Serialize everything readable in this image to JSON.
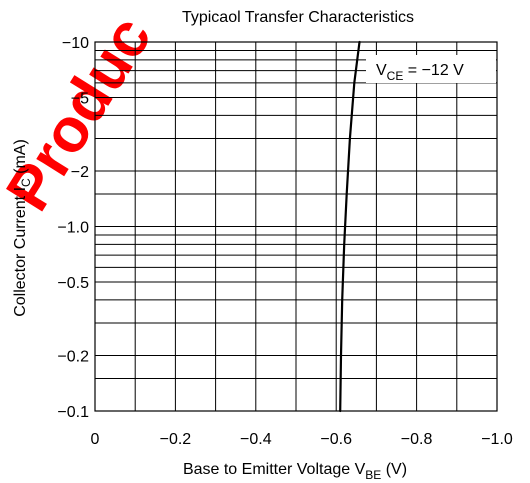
{
  "chart_data": {
    "type": "line",
    "title": "Typicaol Transfer Characteristics",
    "xlabel": {
      "main": "Base to Emitter Voltage  V",
      "sub": "BE",
      "unit": "  (V)"
    },
    "ylabel": {
      "main": "Collector Current  I",
      "sub": "C",
      "unit": "  (mA)"
    },
    "xlim": [
      0,
      -1.0
    ],
    "ylim": [
      -0.1,
      -10
    ],
    "yscale": "log",
    "x_ticks": [
      0,
      -0.2,
      -0.4,
      -0.6,
      -0.8,
      -1.0
    ],
    "x_tick_labels": [
      "0",
      "−0.2",
      "−0.4",
      "−0.6",
      "−0.8",
      "−1.0"
    ],
    "y_ticks": [
      -10,
      -5,
      -2,
      -1.0,
      -0.5,
      -0.2,
      -0.1
    ],
    "y_tick_labels": [
      "−10",
      "−5",
      "−2",
      "−1.0",
      "−0.5",
      "−0.2",
      "−0.1"
    ],
    "y_grid": [
      -0.1,
      -0.15,
      -0.2,
      -0.3,
      -0.4,
      -0.5,
      -0.6,
      -0.7,
      -0.8,
      -0.9,
      -1.0,
      -1.5,
      -2,
      -3,
      -4,
      -5,
      -6,
      -7,
      -8,
      -9,
      -10
    ],
    "grid": true,
    "series": [
      {
        "name": "",
        "annotation": {
          "main": "V",
          "sub": "CE",
          "rest": " = −12 V"
        },
        "color": "#000000",
        "x": [
          -0.61,
          -0.612,
          -0.615,
          -0.62,
          -0.626,
          -0.634,
          -0.645,
          -0.658
        ],
        "y": [
          -0.1,
          -0.2,
          -0.4,
          -0.8,
          -1.5,
          -3,
          -6,
          -10
        ]
      }
    ]
  },
  "watermark": {
    "text": "Produc",
    "color": "#ff0000"
  }
}
